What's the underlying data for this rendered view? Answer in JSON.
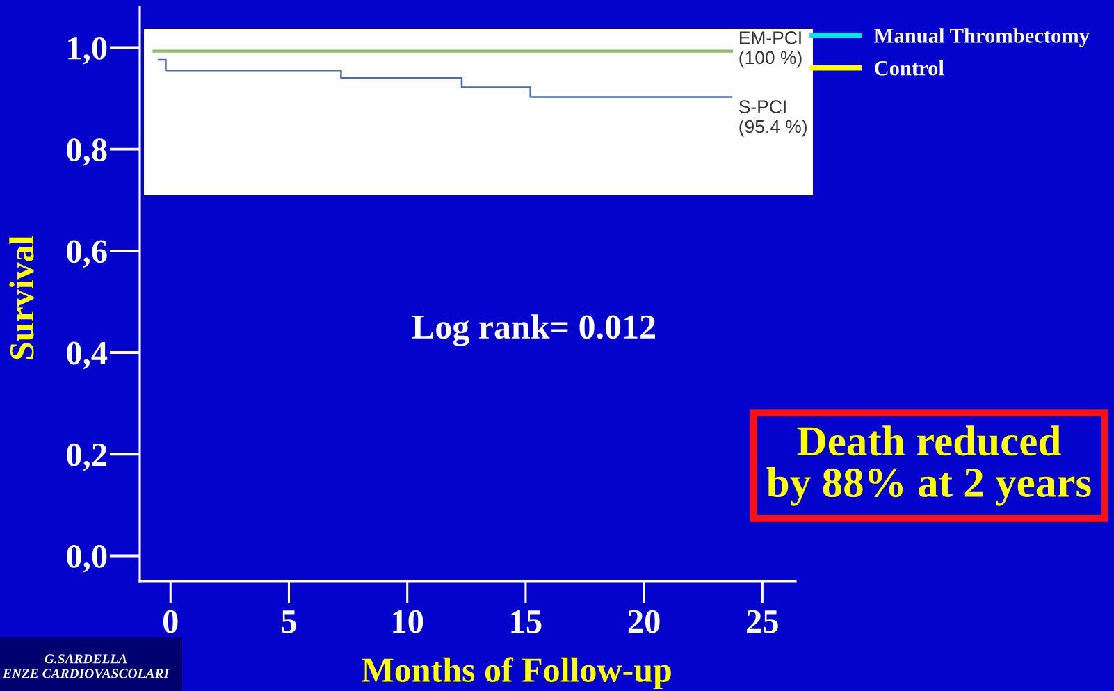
{
  "chart_data": {
    "type": "step",
    "xlabel": "Months of Follow-up",
    "ylabel": "Survival",
    "xlim": [
      -1.3,
      26.4
    ],
    "xticks": [
      0,
      5,
      10,
      15,
      20,
      25
    ],
    "ylim": [
      -0.05,
      1.08
    ],
    "yticks": [
      {
        "value": 0,
        "label": "0,0"
      },
      {
        "value": 0.2,
        "label": "0,2"
      },
      {
        "value": 0.4,
        "label": "0,4"
      },
      {
        "value": 0.6,
        "label": "0,6"
      },
      {
        "value": 0.8,
        "label": "0,8"
      },
      {
        "value": 1,
        "label": "1,0"
      }
    ],
    "series": [
      {
        "name": "EM-PCI\n(100 %)",
        "color": "#8cbf6c",
        "x": [
          -0.7,
          23.7
        ],
        "values": [
          0.993,
          0.993
        ]
      },
      {
        "name": "S-PCI\n(95.4 %)",
        "color": "#4a6da8",
        "x": [
          -0.5,
          -0.2,
          7.2,
          12.3,
          15.2,
          23.7
        ],
        "values": [
          0.976,
          0.955,
          0.94,
          0.922,
          0.903,
          0.903
        ]
      },
      {
        "type": "line",
        "name": "Manual Thrombectomy",
        "color": "#00e5f5"
      },
      {
        "type": "line",
        "name": "Control",
        "color": "#ffff00"
      }
    ],
    "legend": "top right",
    "annotations": [
      "Log rank= 0.012",
      "Death reduced\nby 88% at 2 years",
      "G.SARDELLA\nENZE CARDIOVASCOLARI"
    ]
  }
}
